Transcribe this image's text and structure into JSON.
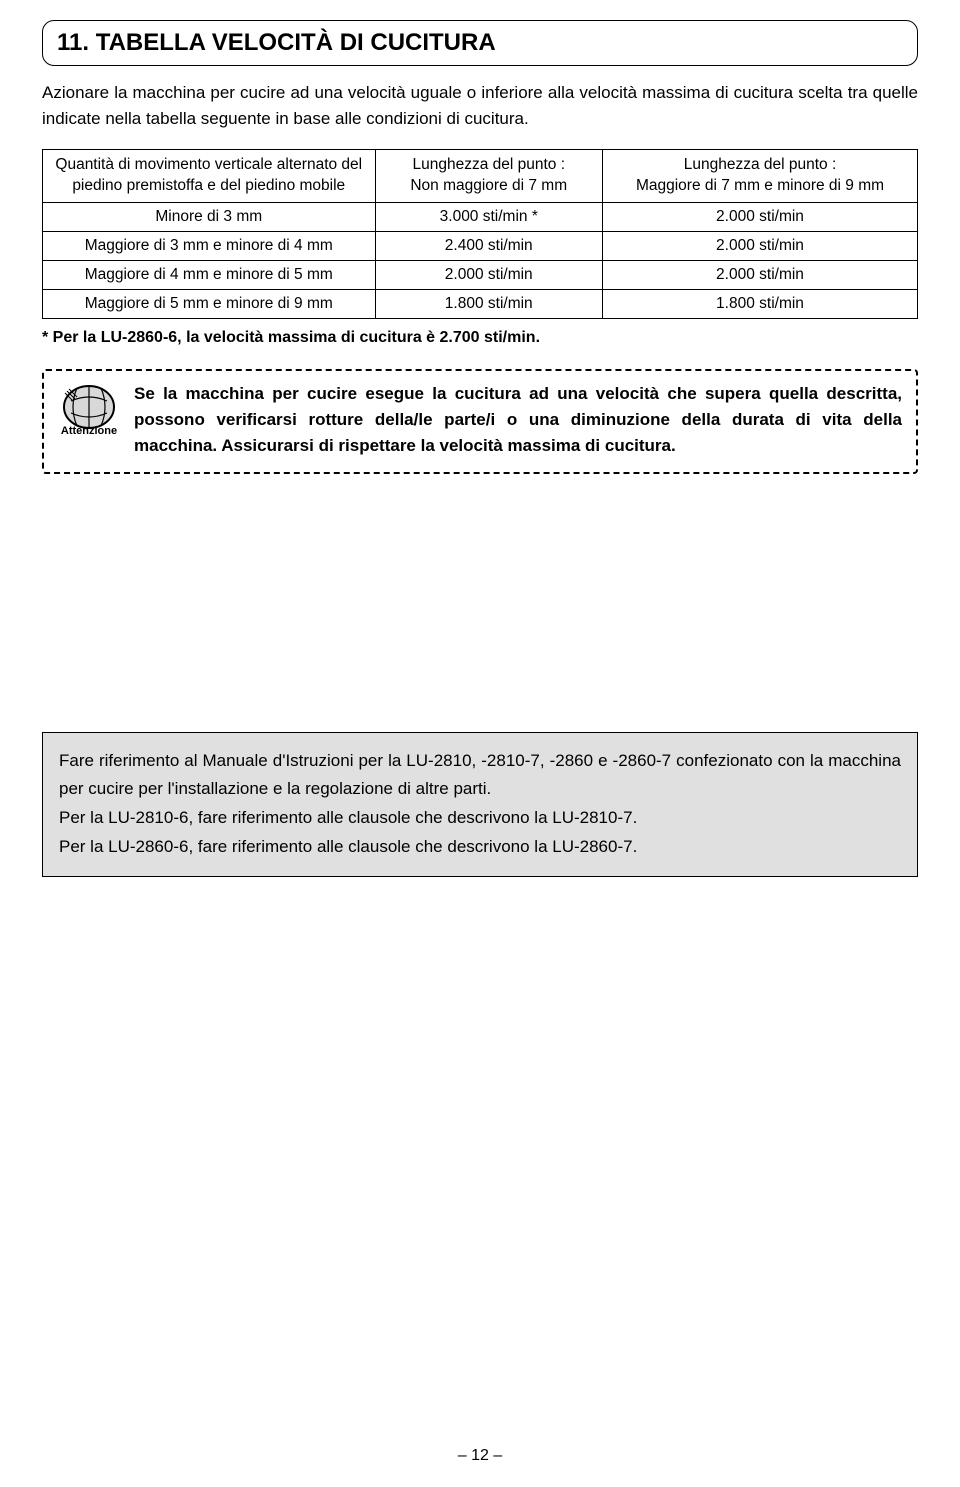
{
  "section": {
    "title": "11. TABELLA VELOCITÀ DI CUCITURA",
    "intro": "Azionare la macchina per cucire ad una velocità uguale o inferiore alla velocità massima di cucitura scelta tra quelle indicate nella tabella seguente in base alle condizioni di cucitura."
  },
  "table": {
    "headers": [
      "Quantità di movimento verticale alternato del piedino premistoffa e del piedino mobile",
      "Lunghezza del punto :\nNon maggiore di 7 mm",
      "Lunghezza del punto :\nMaggiore di 7 mm e minore di 9 mm"
    ],
    "rows": [
      [
        "Minore di 3 mm",
        "3.000 sti/min *",
        "2.000 sti/min"
      ],
      [
        "Maggiore di 3 mm e minore di 4 mm",
        "2.400 sti/min",
        "2.000 sti/min"
      ],
      [
        "Maggiore di 4 mm e minore di 5 mm",
        "2.000 sti/min",
        "2.000 sti/min"
      ],
      [
        "Maggiore di 5 mm e minore di 9 mm",
        "1.800 sti/min",
        "1.800 sti/min"
      ]
    ]
  },
  "footnote": "* Per la LU-2860-6, la velocità massima di cucitura è 2.700 sti/min.",
  "warning": {
    "label": "Attenzione",
    "text": "Se la macchina per cucire esegue la cucitura ad una velocità che supera quella descritta, possono verificarsi rotture della/le parte/i o una diminuzione della durata di vita della macchina. Assicurarsi di rispettare la velocità massima di cucitura."
  },
  "reference": {
    "p1": "Fare riferimento al Manuale d'Istruzioni per la LU-2810, -2810-7, -2860 e -2860-7 confezionato con la macchina per cucire per l'installazione e la regolazione di altre parti.",
    "p2": "Per la LU-2810-6, fare riferimento alle clausole che descrivono la LU-2810-7.",
    "p3": "Per la LU-2860-6, fare riferimento alle clausole che descrivono la LU-2860-7."
  },
  "pageNumber": "– 12 –",
  "colors": {
    "grayFill": "#e0e0e0",
    "text": "#000000",
    "bg": "#ffffff"
  }
}
